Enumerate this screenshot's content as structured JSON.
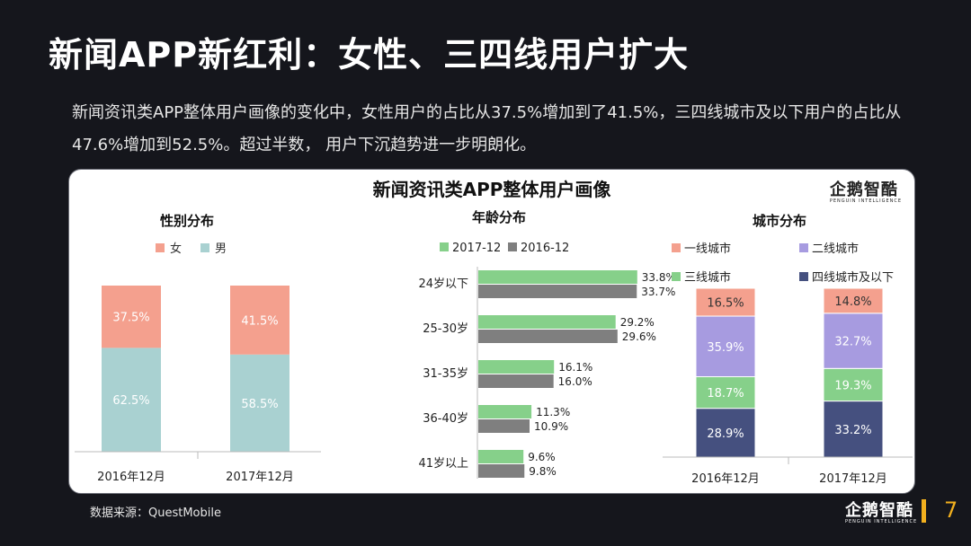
{
  "title": "新闻APP新红利：女性、三四线用户扩大",
  "intro": "新闻资讯类APP整体用户画像的变化中，女性用户的占比从37.5%增加到了41.5%，三四线城市及以下用户的占比从47.6%增加到52.5%。超过半数， 用户下沉趋势进一步明朗化。",
  "panel_title": "新闻资讯类APP整体用户画像",
  "logo": {
    "main": "企鹅智酷",
    "sub": "PENGUIN INTELLIGENCE"
  },
  "source": "数据来源：QuestMobile",
  "page_number": "7",
  "colors": {
    "female": "#f4a08e",
    "male": "#a9d1d1",
    "age_2017": "#86d08a",
    "age_2016": "#7f7f7f",
    "tier1": "#f4a08e",
    "tier2": "#a79be0",
    "tier3": "#86d08a",
    "tier4": "#45507f"
  },
  "chart_data": [
    {
      "type": "bar",
      "stacked": true,
      "title": "性别分布",
      "categories": [
        "2016年12月",
        "2017年12月"
      ],
      "series": [
        {
          "name": "女",
          "values": [
            37.5,
            41.5
          ],
          "labels": [
            "37.5%",
            "41.5%"
          ]
        },
        {
          "name": "男",
          "values": [
            62.5,
            58.5
          ],
          "labels": [
            "62.5%",
            "58.5%"
          ]
        }
      ],
      "ylim": [
        0,
        100
      ],
      "legend": "top"
    },
    {
      "type": "bar",
      "orientation": "horizontal",
      "title": "年龄分布",
      "categories": [
        "24岁以下",
        "25-30岁",
        "31-35岁",
        "36-40岁",
        "41岁以上"
      ],
      "series": [
        {
          "name": "2017-12",
          "values": [
            33.8,
            29.2,
            16.1,
            11.3,
            9.6
          ],
          "labels": [
            "33.8%",
            "29.2%",
            "16.1%",
            "11.3%",
            "9.6%"
          ]
        },
        {
          "name": "2016-12",
          "values": [
            33.7,
            29.6,
            16.0,
            10.9,
            9.8
          ],
          "labels": [
            "33.7%",
            "29.6%",
            "16.0%",
            "10.9%",
            "9.8%"
          ]
        }
      ],
      "legend": "top"
    },
    {
      "type": "bar",
      "stacked": true,
      "title": "城市分布",
      "categories": [
        "2016年12月",
        "2017年12月"
      ],
      "series": [
        {
          "name": "一线城市",
          "values": [
            16.5,
            14.8
          ],
          "labels": [
            "16.5%",
            "14.8%"
          ]
        },
        {
          "name": "二线城市",
          "values": [
            35.9,
            32.7
          ],
          "labels": [
            "35.9%",
            "32.7%"
          ]
        },
        {
          "name": "三线城市",
          "values": [
            18.7,
            19.3
          ],
          "labels": [
            "18.7%",
            "19.3%"
          ]
        },
        {
          "name": "四线城市及以下",
          "values": [
            28.9,
            33.2
          ],
          "labels": [
            "28.9%",
            "33.2%"
          ]
        }
      ],
      "ylim": [
        0,
        100
      ],
      "legend": "top"
    }
  ]
}
